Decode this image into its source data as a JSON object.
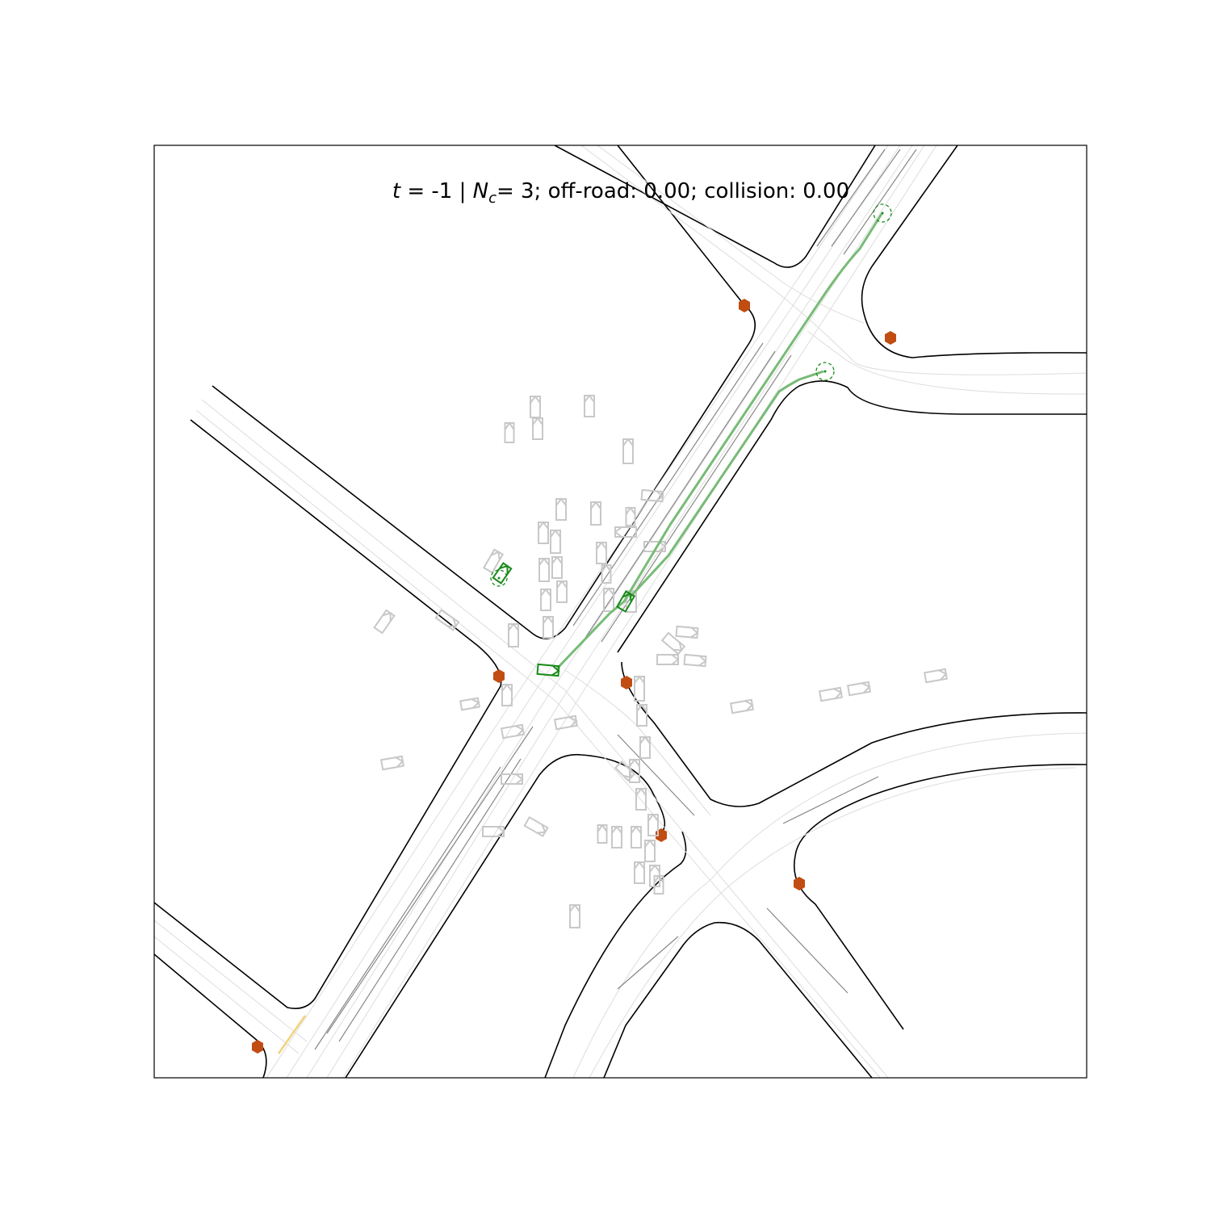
{
  "title": {
    "t_label": "t",
    "t_value": "= -1",
    "sep": "| ",
    "nc_symbol": "N",
    "nc_sub": "c",
    "nc_value": "= 3; off-road: 0.00; collision: 0.00"
  },
  "colors": {
    "road_edge": "#000000",
    "lane_center": "#dddddd",
    "lane_divider": "#888888",
    "other_agent": "#c8c8c8",
    "controlled_agent": "#1a8a1a",
    "trajectory": "#77bb77",
    "goal": "#1a8a1a",
    "stop_sign": "#c14d12",
    "crosswalk": "#f2d17a",
    "frame": "#000000"
  },
  "legend": "none",
  "icons": {
    "stop_sign": "hexagon-icon",
    "goal": "dashed-circle-icon",
    "agent": "box-with-heading-triangle-icon"
  }
}
